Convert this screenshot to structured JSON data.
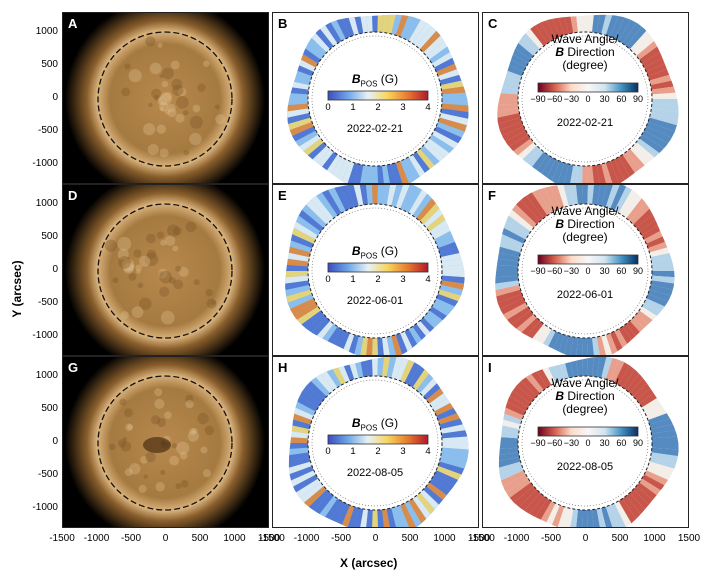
{
  "figure": {
    "x_axis_title": "X (arcsec)",
    "y_axis_title": "Y (arcsec)",
    "x_ticks": [
      "-1500",
      "-1000",
      "-500",
      "0",
      "500",
      "1000",
      "1500"
    ],
    "y_ticks": [
      "1000",
      "500",
      "0",
      "-500",
      "-1000"
    ]
  },
  "rows": [
    {
      "date": "2022-02-21",
      "letters": [
        "A",
        "B",
        "C"
      ]
    },
    {
      "date": "2022-06-01",
      "letters": [
        "D",
        "E",
        "F"
      ]
    },
    {
      "date": "2022-08-05",
      "letters": [
        "G",
        "H",
        "I"
      ]
    }
  ],
  "colorbars": {
    "bpos": {
      "title_main": "B",
      "title_sub": "POS",
      "title_unit": "(G)",
      "ticks": [
        "0",
        "1",
        "2",
        "3",
        "4"
      ],
      "colors": [
        "#3b4cc0",
        "#6ea6e8",
        "#e8f2f5",
        "#f7d35c",
        "#e67a2e",
        "#b2182b"
      ]
    },
    "angle": {
      "title_line1": "Wave Angle/",
      "title_line2_b": "B",
      "title_line2_rest": " Direction",
      "title_line3": "(degree)",
      "ticks": [
        "−90",
        "−60",
        "−30",
        "0",
        "30",
        "60",
        "90"
      ],
      "colors": [
        "#67001f",
        "#d6604d",
        "#fddbc7",
        "#f7f7f7",
        "#d1e5f0",
        "#4393c3",
        "#053061"
      ]
    }
  }
}
